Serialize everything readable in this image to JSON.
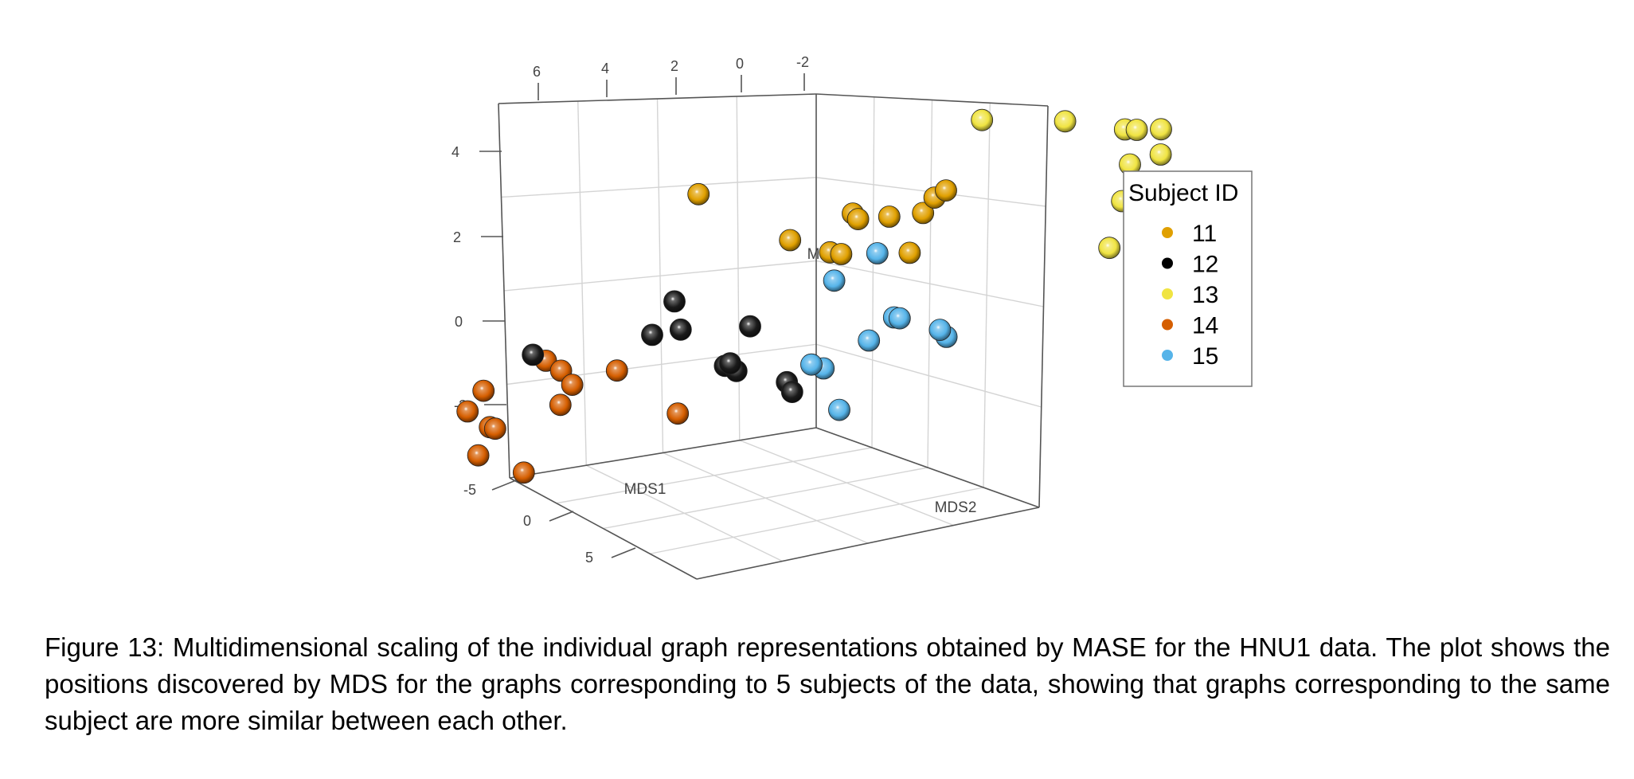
{
  "chart_data": {
    "type": "scatter3d",
    "axes": {
      "x": {
        "label": "MDS1",
        "ticks": [
          "-5",
          "0",
          "5"
        ]
      },
      "y": {
        "label": "MDS2",
        "ticks": [
          "6",
          "4",
          "2",
          "0",
          "-2"
        ]
      },
      "z": {
        "label": "MDS3",
        "ticks": [
          "4",
          "2",
          "0",
          "-2"
        ]
      }
    },
    "grid": true,
    "legend": {
      "title": "Subject ID",
      "placement": "right"
    },
    "series": [
      {
        "name": "11",
        "color": "#E0A000",
        "points": [
          [
            1.2,
            -2.2,
            3.5
          ],
          [
            -1.0,
            -0.5,
            2.5
          ],
          [
            1.1,
            -2.0,
            3.3
          ],
          [
            0.5,
            -1.2,
            2.7
          ],
          [
            1.0,
            -1.8,
            2.9
          ],
          [
            -2.5,
            2.2,
            2.6
          ],
          [
            0.2,
            0.5,
            2.0
          ],
          [
            1.5,
            -1.6,
            2.0
          ],
          [
            -0.8,
            -0.6,
            2.4
          ],
          [
            0.8,
            -0.4,
            1.8
          ],
          [
            0.6,
            -0.2,
            1.8
          ]
        ]
      },
      {
        "name": "12",
        "color": "#000000",
        "points": [
          [
            -0.5,
            2.5,
            0.3
          ],
          [
            -0.2,
            1.2,
            -0.2
          ],
          [
            -0.9,
            2.9,
            -0.6
          ],
          [
            1.4,
            4.8,
            -0.8
          ],
          [
            0.4,
            1.4,
            -1.2
          ],
          [
            0.5,
            1.5,
            -1.0
          ],
          [
            1.2,
            0.5,
            -1.3
          ],
          [
            1.4,
            0.4,
            -1.5
          ],
          [
            -0.6,
            2.4,
            -0.4
          ],
          [
            0.3,
            1.6,
            -1.1
          ]
        ]
      },
      {
        "name": "13",
        "color": "#F0E442",
        "points": [
          [
            -2.7,
            -2.6,
            4.6
          ],
          [
            -2.9,
            -4.0,
            4.6
          ],
          [
            -3.2,
            -5.0,
            4.4
          ],
          [
            -3.2,
            -5.2,
            4.4
          ],
          [
            -3.4,
            -5.6,
            4.4
          ],
          [
            -2.9,
            -5.1,
            3.6
          ],
          [
            -3.3,
            -5.6,
            3.8
          ],
          [
            -2.3,
            -5.0,
            2.8
          ],
          [
            -2.0,
            -4.8,
            1.7
          ],
          [
            -2.2,
            -5.3,
            1.4
          ]
        ]
      },
      {
        "name": "14",
        "color": "#D55E00",
        "points": [
          [
            2.1,
            5.6,
            -1.6
          ],
          [
            1.0,
            4.6,
            -1.0
          ],
          [
            0.9,
            3.4,
            -1.2
          ],
          [
            3.4,
            5.8,
            -1.9
          ],
          [
            2.0,
            4.3,
            -1.9
          ],
          [
            3.8,
            5.4,
            -2.2
          ],
          [
            4.0,
            5.3,
            -2.2
          ],
          [
            0.3,
            2.4,
            -2.3
          ],
          [
            5.6,
            5.5,
            -2.6
          ],
          [
            6.1,
            4.7,
            -2.9
          ],
          [
            2.0,
            4.1,
            -1.4
          ],
          [
            1.8,
            4.3,
            -1.1
          ]
        ]
      },
      {
        "name": "15",
        "color": "#56B4E9",
        "points": [
          [
            -1.3,
            -0.9,
            1.5
          ],
          [
            -0.7,
            -0.2,
            0.9
          ],
          [
            -1.0,
            -1.2,
            0.0
          ],
          [
            -0.9,
            -1.3,
            0.0
          ],
          [
            -0.6,
            -2.0,
            -0.2
          ],
          [
            -0.8,
            -2.1,
            -0.4
          ],
          [
            -0.5,
            -0.8,
            -0.5
          ],
          [
            0.9,
            0.1,
            -0.9
          ],
          [
            0.8,
            -0.1,
            -1.0
          ],
          [
            1.4,
            -0.4,
            -1.9
          ]
        ]
      }
    ]
  },
  "caption": "Figure 13: Multidimensional scaling of the individual graph representations obtained by MASE for the HNU1 data.  The plot shows the positions discovered by MDS for the graphs corresponding to 5 subjects of the data, showing that graphs corresponding to the same subject are more similar between each other."
}
